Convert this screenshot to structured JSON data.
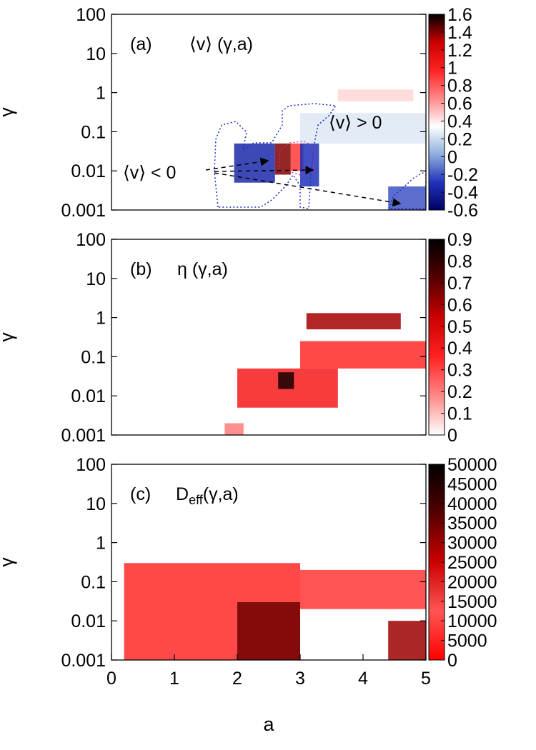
{
  "figure": {
    "xlabel": "a"
  },
  "chart_data": [
    {
      "type": "heatmap",
      "panel_label": "(a)",
      "title": "⟨v⟩ (γ,a)",
      "xlabel": "",
      "ylabel": "γ",
      "x_range": [
        0,
        5
      ],
      "y_range": [
        0.001,
        100
      ],
      "y_scale": "log",
      "x_ticks": [],
      "y_ticks": [
        "0.001",
        "0.01",
        "0.1",
        "1",
        "10",
        "100"
      ],
      "colorbar": {
        "range": [
          -0.6,
          1.6
        ],
        "ticks": [
          "-0.6",
          "-0.4",
          "-0.2",
          "0",
          "0.2",
          "0.4",
          "0.6",
          "0.8",
          "1",
          "1.2",
          "1.4",
          "1.6"
        ],
        "palette": [
          "#000066",
          "#2233bb",
          "#8fb0dd",
          "#ffffff",
          "#ff8888",
          "#ff2222",
          "#cc0000",
          "#000000"
        ]
      },
      "annotations": [
        "⟨v⟩ > 0",
        "⟨v⟩ < 0"
      ],
      "regions": [
        {
          "x": [
            1.95,
            2.6
          ],
          "y": [
            0.005,
            0.05
          ],
          "value": -0.35
        },
        {
          "x": [
            2.6,
            2.85
          ],
          "y": [
            0.008,
            0.05
          ],
          "value": 1.4
        },
        {
          "x": [
            2.85,
            3.05
          ],
          "y": [
            0.01,
            0.05
          ],
          "value": 0.9
        },
        {
          "x": [
            3.0,
            3.3
          ],
          "y": [
            0.004,
            0.05
          ],
          "value": -0.3
        },
        {
          "x": [
            3.0,
            5.0
          ],
          "y": [
            0.05,
            0.3
          ],
          "value": 0.25
        },
        {
          "x": [
            3.6,
            4.8
          ],
          "y": [
            0.6,
            1.2
          ],
          "value": 0.45
        },
        {
          "x": [
            4.4,
            5.0
          ],
          "y": [
            0.001,
            0.004
          ],
          "value": -0.2
        }
      ]
    },
    {
      "type": "heatmap",
      "panel_label": "(b)",
      "title": "η (γ,a)",
      "xlabel": "",
      "ylabel": "γ",
      "x_range": [
        0,
        5
      ],
      "y_range": [
        0.001,
        100
      ],
      "y_scale": "log",
      "x_ticks": [],
      "y_ticks": [
        "0.001",
        "0.01",
        "0.1",
        "1",
        "10",
        "100"
      ],
      "colorbar": {
        "range": [
          0,
          0.9
        ],
        "ticks": [
          "0",
          "0.1",
          "0.2",
          "0.3",
          "0.4",
          "0.5",
          "0.6",
          "0.7",
          "0.8",
          "0.9"
        ],
        "palette": [
          "#ffffff",
          "#ff8888",
          "#ff2222",
          "#cc0000",
          "#550000",
          "#000000"
        ]
      },
      "regions": [
        {
          "x": [
            2.0,
            3.6
          ],
          "y": [
            0.005,
            0.05
          ],
          "value": 0.4
        },
        {
          "x": [
            2.65,
            2.9
          ],
          "y": [
            0.015,
            0.04
          ],
          "value": 0.85
        },
        {
          "x": [
            3.0,
            5.0
          ],
          "y": [
            0.05,
            0.25
          ],
          "value": 0.35
        },
        {
          "x": [
            3.1,
            4.6
          ],
          "y": [
            0.5,
            1.3
          ],
          "value": 0.6
        },
        {
          "x": [
            1.8,
            2.1
          ],
          "y": [
            0.001,
            0.002
          ],
          "value": 0.2
        }
      ]
    },
    {
      "type": "heatmap",
      "panel_label": "(c)",
      "title": "Deff(γ,a)",
      "title_main": "D",
      "title_sub": "eff",
      "title_rest": "(γ,a)",
      "xlabel": "a",
      "ylabel": "γ",
      "x_range": [
        0,
        5
      ],
      "y_range": [
        0.001,
        100
      ],
      "y_scale": "log",
      "x_ticks": [
        "0",
        "1",
        "2",
        "3",
        "4",
        "5"
      ],
      "y_ticks": [
        "0.001",
        "0.01",
        "0.1",
        "1",
        "10",
        "100"
      ],
      "colorbar": {
        "range": [
          0,
          50000
        ],
        "ticks": [
          "0",
          "5000",
          "10000",
          "15000",
          "20000",
          "25000",
          "30000",
          "35000",
          "40000",
          "45000",
          "50000"
        ],
        "palette": [
          "#ff0000",
          "#ff5555",
          "#cc0000",
          "#550000",
          "#000000"
        ]
      },
      "regions": [
        {
          "x": [
            0.2,
            3.0
          ],
          "y": [
            0.001,
            0.3
          ],
          "value": 6000
        },
        {
          "x": [
            2.0,
            3.0
          ],
          "y": [
            0.001,
            0.03
          ],
          "value": 35000
        },
        {
          "x": [
            3.0,
            5.0
          ],
          "y": [
            0.02,
            0.2
          ],
          "value": 8000
        },
        {
          "x": [
            4.4,
            5.0
          ],
          "y": [
            0.001,
            0.01
          ],
          "value": 30000
        }
      ]
    }
  ]
}
